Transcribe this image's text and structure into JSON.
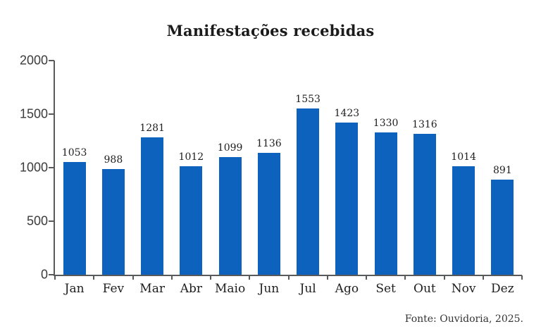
{
  "chart_data": {
    "type": "bar",
    "title": "Manifestações recebidas",
    "categories": [
      "Jan",
      "Fev",
      "Mar",
      "Abr",
      "Maio",
      "Jun",
      "Jul",
      "Ago",
      "Set",
      "Out",
      "Nov",
      "Dez"
    ],
    "values": [
      1053,
      988,
      1281,
      1012,
      1099,
      1136,
      1553,
      1423,
      1330,
      1316,
      1014,
      891
    ],
    "xlabel": "",
    "ylabel": "",
    "ylim": [
      0,
      2000
    ],
    "yticks": [
      0,
      500,
      1000,
      1500,
      2000
    ],
    "grid": false,
    "legend": false,
    "data_labels": true,
    "bar_color": "#0c62bc",
    "axis_color": "#58595b"
  },
  "footer": {
    "source_label": "Fonte: Ouvidoria, 2025."
  }
}
